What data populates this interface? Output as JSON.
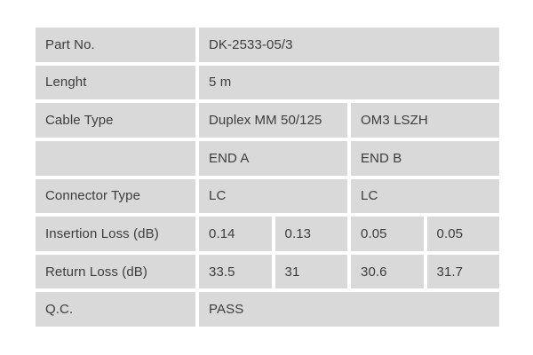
{
  "document": {
    "colors": {
      "cell_bg": "#d9d9d9",
      "text": "#3d3d3d",
      "page_bg": "#ffffff"
    },
    "table": {
      "rows": [
        {
          "label": "Part No.",
          "cells": [
            {
              "text": "DK-2533-05/3",
              "span": 4
            }
          ]
        },
        {
          "label": "Lenght",
          "cells": [
            {
              "text": "5 m",
              "span": 4
            }
          ]
        },
        {
          "label": "Cable Type",
          "cells": [
            {
              "text": "Duplex MM 50/125",
              "span": 2
            },
            {
              "text": "OM3 LSZH",
              "span": 2
            }
          ]
        },
        {
          "label": "",
          "cells": [
            {
              "text": "END A",
              "span": 2
            },
            {
              "text": "END B",
              "span": 2
            }
          ]
        },
        {
          "label": "Connector Type",
          "cells": [
            {
              "text": "LC",
              "span": 2
            },
            {
              "text": "LC",
              "span": 2
            }
          ]
        },
        {
          "label": "Insertion Loss (dB)",
          "cells": [
            {
              "text": "0.14",
              "span": 1
            },
            {
              "text": "0.13",
              "span": 1
            },
            {
              "text": "0.05",
              "span": 1
            },
            {
              "text": "0.05",
              "span": 1
            }
          ]
        },
        {
          "label": "Return Loss (dB)",
          "cells": [
            {
              "text": "33.5",
              "span": 1
            },
            {
              "text": "31",
              "span": 1
            },
            {
              "text": "30.6",
              "span": 1
            },
            {
              "text": "31.7",
              "span": 1
            }
          ]
        },
        {
          "label": "Q.C.",
          "cells": [
            {
              "text": "PASS",
              "span": 4
            }
          ]
        }
      ]
    }
  }
}
